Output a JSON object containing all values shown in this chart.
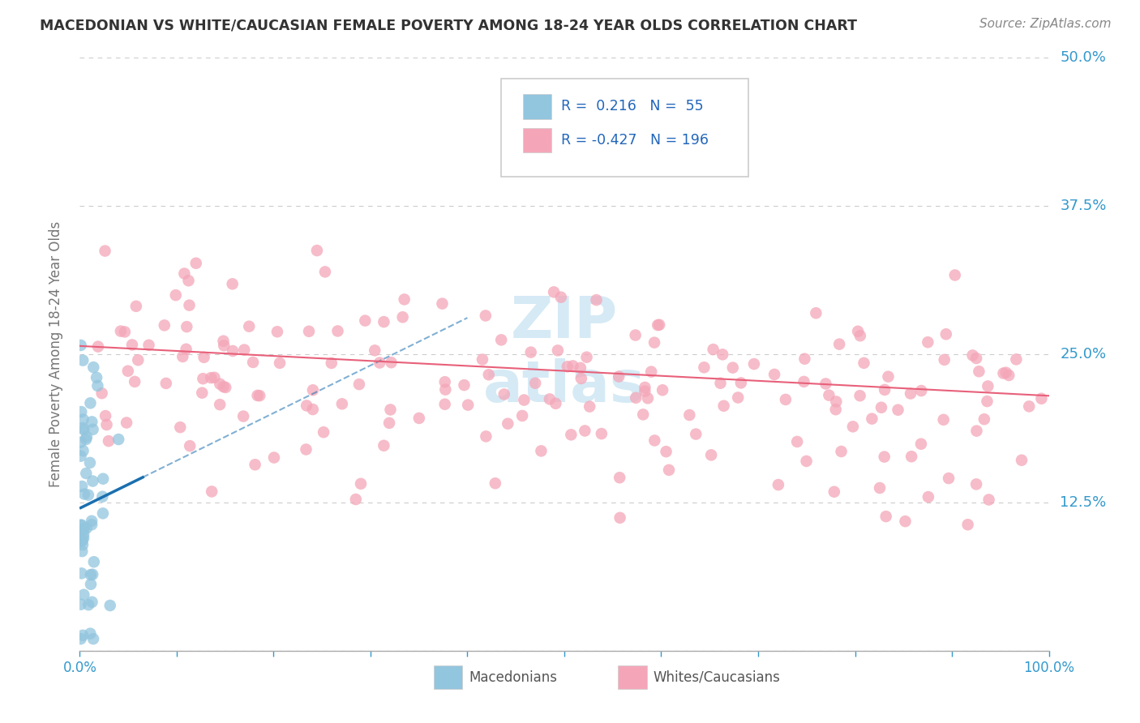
{
  "title": "MACEDONIAN VS WHITE/CAUCASIAN FEMALE POVERTY AMONG 18-24 YEAR OLDS CORRELATION CHART",
  "source": "Source: ZipAtlas.com",
  "ylabel": "Female Poverty Among 18-24 Year Olds",
  "xlim": [
    0,
    1
  ],
  "ylim": [
    0,
    0.5
  ],
  "yticks": [
    0,
    0.125,
    0.25,
    0.375,
    0.5
  ],
  "ytick_labels": [
    "",
    "12.5%",
    "25.0%",
    "37.5%",
    "50.0%"
  ],
  "xticks": [
    0,
    0.1,
    0.2,
    0.3,
    0.4,
    0.5,
    0.6,
    0.7,
    0.8,
    0.9,
    1.0
  ],
  "legend_r_blue": "0.216",
  "legend_n_blue": "55",
  "legend_r_pink": "-0.427",
  "legend_n_pink": "196",
  "blue_color": "#92c5de",
  "pink_color": "#f4a6b8",
  "blue_line_color": "#1a6faf",
  "pink_line_color": "#e8607a",
  "watermark_color": "#d5eaf5",
  "title_color": "#333333",
  "source_color": "#888888",
  "axis_color": "#3399cc",
  "ylabel_color": "#777777",
  "legend_text_color": "#2266bb",
  "legend_border_color": "#cccccc",
  "grid_color": "#cccccc",
  "bottom_label_color": "#555555"
}
